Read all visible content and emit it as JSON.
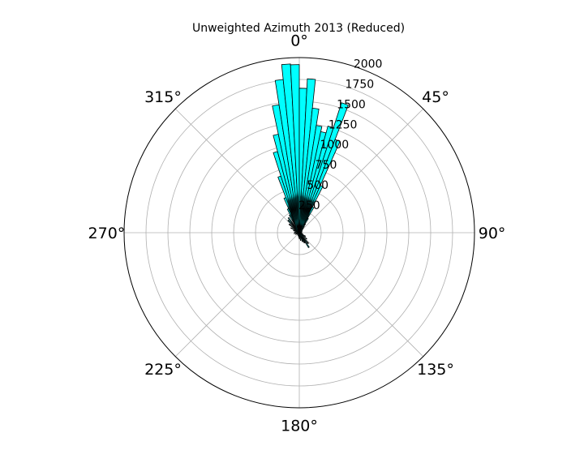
{
  "chart_data": {
    "type": "bar",
    "projection": "polar",
    "title": "Unweighted Azimuth 2013 (Reduced)",
    "theta_zero_location": "N",
    "theta_direction": "clockwise",
    "theta_ticks": [
      0,
      45,
      90,
      135,
      180,
      225,
      270,
      315
    ],
    "theta_tick_labels": [
      "0°",
      "45°",
      "90°",
      "135°",
      "180°",
      "225°",
      "270°",
      "315°"
    ],
    "rlim": [
      0,
      2000
    ],
    "r_ticks": [
      250,
      500,
      750,
      1000,
      1250,
      1500,
      1750,
      2000
    ],
    "r_tick_labels": [
      "250",
      "500",
      "750",
      "1000",
      "1250",
      "1500",
      "1750",
      "2000"
    ],
    "r_label_angle_deg": 22.5,
    "grid": true,
    "bar_color": "#00ffff",
    "edge_color": "#000000",
    "bin_width_deg": 3,
    "bars": [
      {
        "theta": -28.5,
        "r": 230
      },
      {
        "theta": -25.5,
        "r": 300
      },
      {
        "theta": -22.5,
        "r": 430
      },
      {
        "theta": -19.5,
        "r": 680
      },
      {
        "theta": -16.5,
        "r": 960
      },
      {
        "theta": -13.5,
        "r": 1150
      },
      {
        "theta": -10.5,
        "r": 1480
      },
      {
        "theta": -7.5,
        "r": 1760
      },
      {
        "theta": -4.5,
        "r": 1930
      },
      {
        "theta": -1.5,
        "r": 1920
      },
      {
        "theta": 1.5,
        "r": 1650
      },
      {
        "theta": 4.5,
        "r": 1760
      },
      {
        "theta": 7.5,
        "r": 1430
      },
      {
        "theta": 10.5,
        "r": 1240
      },
      {
        "theta": 13.5,
        "r": 1180
      },
      {
        "theta": 16.5,
        "r": 1260
      },
      {
        "theta": 19.5,
        "r": 1560
      },
      {
        "theta": 22.5,
        "r": 1140
      },
      {
        "theta": 25.5,
        "r": 590
      },
      {
        "theta": 28.5,
        "r": 330
      },
      {
        "theta": 31.5,
        "r": 190
      },
      {
        "theta": 34.5,
        "r": 120
      },
      {
        "theta": 37.5,
        "r": 90
      },
      {
        "theta": 40.5,
        "r": 70
      },
      {
        "theta": 45,
        "r": 55
      },
      {
        "theta": 60,
        "r": 40
      },
      {
        "theta": 75,
        "r": 30
      },
      {
        "theta": 90,
        "r": 25
      },
      {
        "theta": 105,
        "r": 40
      },
      {
        "theta": 120,
        "r": 80
      },
      {
        "theta": 130,
        "r": 110
      },
      {
        "theta": 140,
        "r": 160
      },
      {
        "theta": 147,
        "r": 200
      },
      {
        "theta": 153,
        "r": 130
      },
      {
        "theta": 160,
        "r": 110
      },
      {
        "theta": 170,
        "r": 90
      },
      {
        "theta": 180,
        "r": 70
      },
      {
        "theta": 190,
        "r": 50
      },
      {
        "theta": 205,
        "r": 35
      },
      {
        "theta": 225,
        "r": 30
      },
      {
        "theta": 245,
        "r": 45
      },
      {
        "theta": 260,
        "r": 60
      },
      {
        "theta": 275,
        "r": 55
      },
      {
        "theta": 290,
        "r": 70
      },
      {
        "theta": 300,
        "r": 110
      },
      {
        "theta": 310,
        "r": 150
      },
      {
        "theta": 318,
        "r": 190
      },
      {
        "theta": 324,
        "r": 210
      }
    ]
  }
}
